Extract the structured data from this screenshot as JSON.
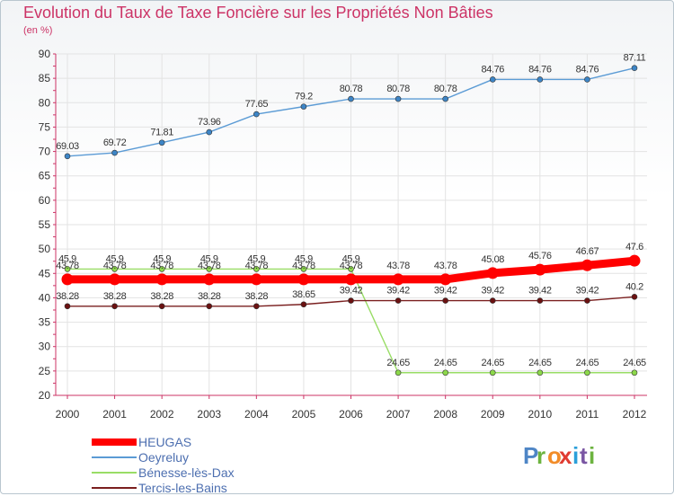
{
  "header": {
    "title": "Evolution du Taux de Taxe Foncière sur les Propriétés Non Bâties",
    "unit": "(en %)"
  },
  "colors": {
    "title": "#cc3366",
    "axis": "#cc3366",
    "grid": "#e3e3e3",
    "legend_text": "#4d6fb0",
    "series": [
      "#ff0000",
      "#5b9bd5",
      "#99dd66",
      "#7a1f1f"
    ],
    "markers": [
      "#ff0000",
      "#3d85c6",
      "#8cd84a",
      "#6b1111"
    ]
  },
  "logo": {
    "text": "Proxiti",
    "letter_colors": [
      "#4f86c6",
      "#6cb33f",
      "#f28c28",
      "#e03c31",
      "#2b9fd9",
      "#7a56a3",
      "#6cb33f"
    ]
  },
  "chart_data": {
    "type": "line",
    "title": "Evolution du Taux de Taxe Foncière sur les Propriétés Non Bâties",
    "ylabel": "(en %)",
    "xlabel": "",
    "categories": [
      "2000",
      "2001",
      "2002",
      "2003",
      "2004",
      "2005",
      "2006",
      "2007",
      "2008",
      "2009",
      "2010",
      "2011",
      "2012"
    ],
    "ylim": [
      20,
      90
    ],
    "yticks": [
      20,
      25,
      30,
      35,
      40,
      45,
      50,
      55,
      60,
      65,
      70,
      75,
      80,
      85,
      90
    ],
    "grid": true,
    "legend_position": "bottom-left",
    "series": [
      {
        "name": "HEUGAS",
        "values": [
          43.78,
          43.78,
          43.78,
          43.78,
          43.78,
          43.78,
          43.78,
          43.78,
          43.78,
          45.08,
          45.76,
          46.67,
          47.6
        ],
        "labels": [
          "43.78",
          "43.78",
          "43.78",
          "43.78",
          "43.78",
          "43.78",
          "43.78",
          "43.78",
          "43.78",
          "45.08",
          "45.76",
          "46.67",
          "47.6"
        ]
      },
      {
        "name": "Oeyreluy",
        "values": [
          69.03,
          69.72,
          71.81,
          73.96,
          77.65,
          79.2,
          80.78,
          80.78,
          80.78,
          84.76,
          84.76,
          84.76,
          87.11
        ],
        "labels": [
          "69.03",
          "69.72",
          "71.81",
          "73.96",
          "77.65",
          "79.2",
          "80.78",
          "80.78",
          "80.78",
          "84.76",
          "84.76",
          "84.76",
          "87.11"
        ]
      },
      {
        "name": "Bénesse-lès-Dax",
        "values": [
          45.9,
          45.9,
          45.9,
          45.9,
          45.9,
          45.9,
          45.9,
          24.65,
          24.65,
          24.65,
          24.65,
          24.65,
          24.65
        ],
        "labels": [
          "45.9",
          "45.9",
          "45.9",
          "45.9",
          "45.9",
          "45.9",
          "45.9",
          "24.65",
          "24.65",
          "24.65",
          "24.65",
          "24.65",
          "24.65"
        ]
      },
      {
        "name": "Tercis-les-Bains",
        "values": [
          38.28,
          38.28,
          38.28,
          38.28,
          38.28,
          38.65,
          39.42,
          39.42,
          39.42,
          39.42,
          39.42,
          39.42,
          40.2
        ],
        "labels": [
          "38.28",
          "38.28",
          "38.28",
          "38.28",
          "38.28",
          "38.65",
          "39.42",
          "39.42",
          "39.42",
          "39.42",
          "39.42",
          "39.42",
          "40.2"
        ]
      }
    ]
  }
}
